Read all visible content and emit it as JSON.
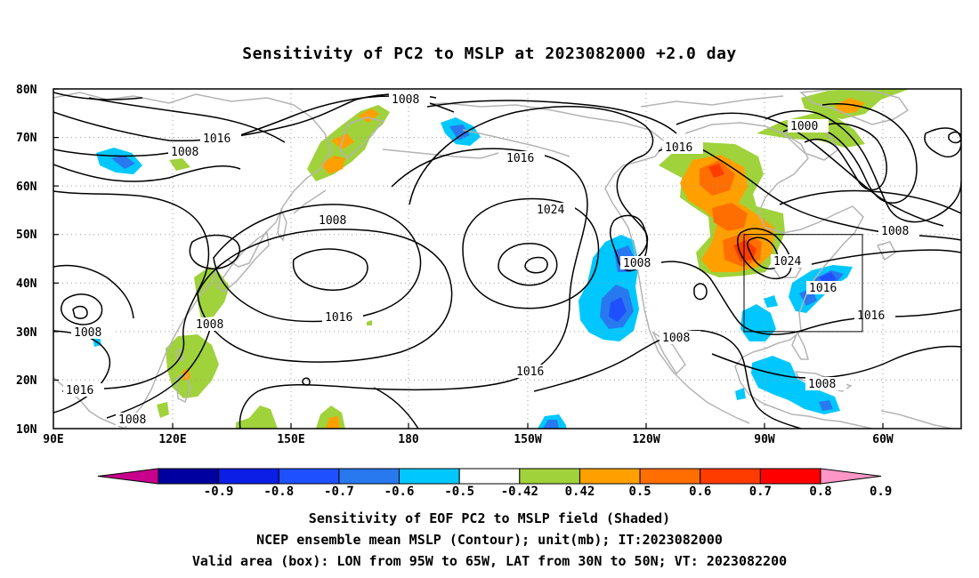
{
  "title": "Sensitivity of PC2 to MSLP at 2023082000 +2.0 day",
  "map": {
    "lat_labels": [
      "80N",
      "70N",
      "60N",
      "50N",
      "40N",
      "30N",
      "20N",
      "10N"
    ],
    "lon_labels": [
      "90E",
      "120E",
      "150E",
      "180",
      "150W",
      "120W",
      "90W",
      "60W"
    ],
    "contour_labels": [
      "1008",
      "1016",
      "1008",
      "1016",
      "1024",
      "1008",
      "1016",
      "1024",
      "1008",
      "1016",
      "1008",
      "1000",
      "1016",
      "1016",
      "1016",
      "1008",
      "1008",
      "1008",
      "1008",
      "1016",
      "1008"
    ],
    "valid_box": {
      "lon_min": "95W",
      "lon_max": "65W",
      "lat_min": "30N",
      "lat_max": "50N"
    }
  },
  "colorbar": {
    "labels": [
      "-0.9",
      "-0.8",
      "-0.7",
      "-0.6",
      "-0.5",
      "-0.42",
      "0.42",
      "0.5",
      "0.6",
      "0.7",
      "0.8",
      "0.9"
    ],
    "colors": [
      "#c8008c",
      "#0000a0",
      "#0a1ee6",
      "#1e50ff",
      "#2878f0",
      "#00c8ff",
      "#ffffff",
      "#a0d23c",
      "#ffa000",
      "#ff6e00",
      "#ff3c00",
      "#ff0000",
      "#ff96c8"
    ]
  },
  "captions": [
    "Sensitivity of EOF PC2 to MSLP field (Shaded)",
    "NCEP ensemble mean MSLP (Contour); unit(mb); IT:2023082000",
    "Valid area (box): LON from 95W to 65W, LAT from 30N to 50N; VT: 2023082200"
  ]
}
